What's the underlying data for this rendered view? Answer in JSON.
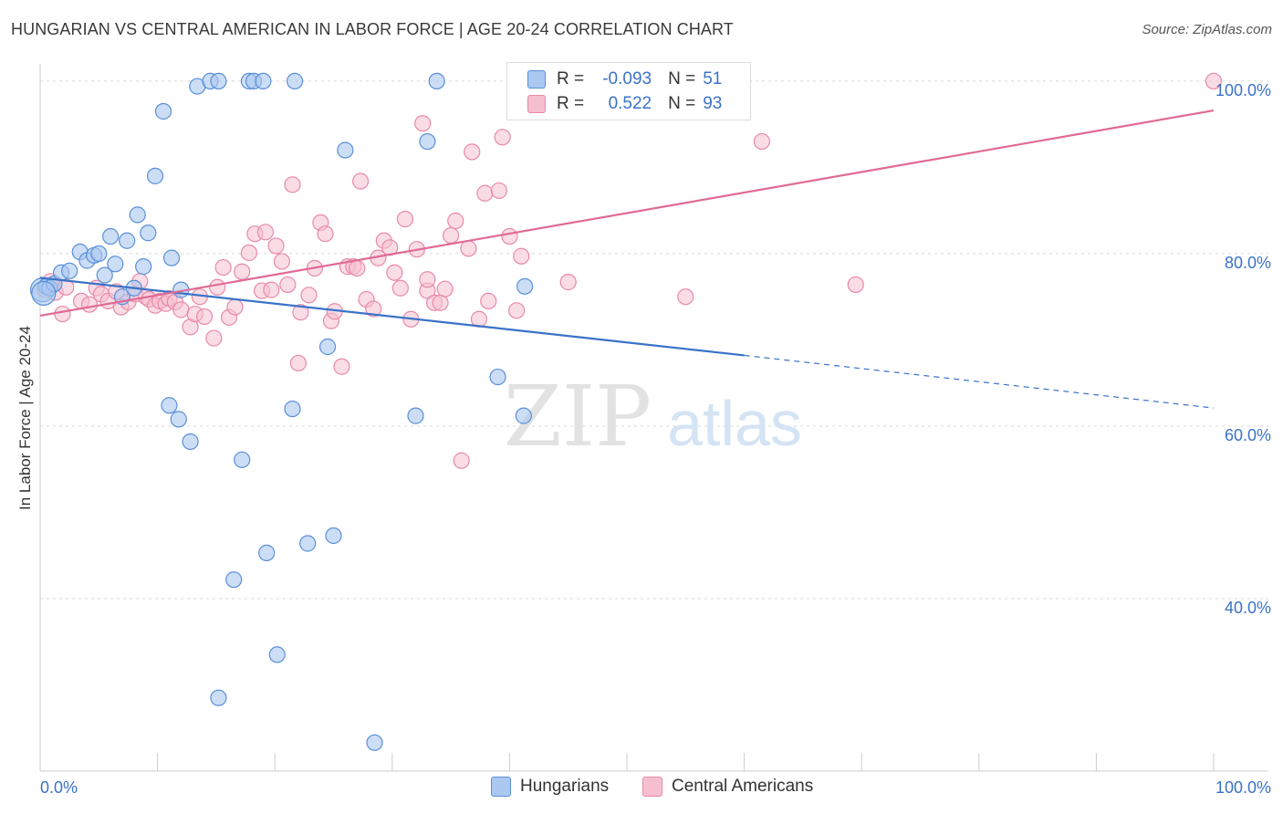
{
  "title": "HUNGARIAN VS CENTRAL AMERICAN IN LABOR FORCE | AGE 20-24 CORRELATION CHART",
  "source": "Source: ZipAtlas.com",
  "watermark": {
    "zip": "ZIP",
    "atlas": "atlas"
  },
  "legend": {
    "rows": [
      {
        "r_label": "R =",
        "r_value": "-0.093",
        "n_label": "N =",
        "n_value": "51"
      },
      {
        "r_label": "R =",
        "r_value": "0.522",
        "n_label": "N =",
        "n_value": "93"
      }
    ]
  },
  "colors": {
    "blue_fill": "#aac8f0",
    "blue_stroke": "#5a8fd8",
    "blue_line": "#3a72c8",
    "pink_fill": "#f6bfd0",
    "pink_stroke": "#e88aa8",
    "pink_line": "#e06a96",
    "tick_text": "#3a72c8",
    "grid": "#d8d8d8"
  },
  "chart_data": {
    "type": "scatter",
    "title": "HUNGARIAN VS CENTRAL AMERICAN IN LABOR FORCE | AGE 20-24 CORRELATION CHART",
    "xlabel": "",
    "ylabel": "In Labor Force | Age 20-24",
    "xlim": [
      0,
      100
    ],
    "ylim": [
      20,
      102
    ],
    "x_tick_labels": [
      "0.0%",
      "100.0%"
    ],
    "y_ticks": [
      40,
      60,
      80,
      100
    ],
    "y_tick_labels": [
      "40.0%",
      "60.0%",
      "80.0%",
      "100.0%"
    ],
    "grid": true,
    "legend_position": "bottom",
    "series": [
      {
        "name": "Hungarians",
        "r": -0.093,
        "n": 51,
        "trend": {
          "x0": 0,
          "y0": 77.2,
          "x1": 60,
          "y1": 68.2,
          "dashed_to_x": 100,
          "dashed_to_y": 62.1
        },
        "points": [
          [
            0.2,
            75.8
          ],
          [
            0.5,
            76.2
          ],
          [
            0.8,
            76.0
          ],
          [
            1.2,
            76.5
          ],
          [
            1.8,
            77.8
          ],
          [
            2.5,
            78.0
          ],
          [
            3.4,
            80.2
          ],
          [
            4.0,
            79.2
          ],
          [
            4.6,
            79.8
          ],
          [
            5.0,
            80.0
          ],
          [
            5.5,
            77.5
          ],
          [
            6.0,
            82.0
          ],
          [
            6.4,
            78.8
          ],
          [
            7.0,
            75.0
          ],
          [
            7.4,
            81.5
          ],
          [
            8.0,
            76.0
          ],
          [
            8.3,
            84.5
          ],
          [
            8.8,
            78.5
          ],
          [
            9.2,
            82.4
          ],
          [
            9.8,
            89.0
          ],
          [
            10.5,
            96.5
          ],
          [
            11.0,
            62.4
          ],
          [
            11.2,
            79.5
          ],
          [
            11.8,
            60.8
          ],
          [
            12.0,
            75.8
          ],
          [
            12.8,
            58.2
          ],
          [
            13.4,
            99.4
          ],
          [
            14.5,
            100.0
          ],
          [
            15.2,
            100.0
          ],
          [
            15.2,
            28.5
          ],
          [
            16.5,
            42.2
          ],
          [
            17.2,
            56.1
          ],
          [
            17.8,
            100.0
          ],
          [
            18.2,
            100.0
          ],
          [
            19.0,
            100.0
          ],
          [
            19.3,
            45.3
          ],
          [
            20.2,
            33.5
          ],
          [
            21.5,
            62.0
          ],
          [
            21.7,
            100.0
          ],
          [
            22.8,
            46.4
          ],
          [
            24.5,
            69.2
          ],
          [
            25.0,
            47.3
          ],
          [
            26.0,
            92.0
          ],
          [
            28.5,
            23.3
          ],
          [
            32.0,
            61.2
          ],
          [
            33.0,
            93.0
          ],
          [
            33.8,
            100.0
          ],
          [
            39.0,
            65.7
          ],
          [
            41.2,
            61.2
          ],
          [
            41.3,
            76.2
          ],
          [
            0.3,
            75.4
          ]
        ]
      },
      {
        "name": "Central Americans",
        "r": 0.522,
        "n": 93,
        "trend": {
          "x0": 0,
          "y0": 72.8,
          "x1": 100,
          "y1": 96.6
        },
        "points": [
          [
            0.4,
            75.8
          ],
          [
            0.9,
            76.8
          ],
          [
            1.3,
            75.5
          ],
          [
            1.9,
            73.0
          ],
          [
            2.2,
            76.1
          ],
          [
            3.5,
            74.5
          ],
          [
            4.2,
            74.1
          ],
          [
            4.8,
            76.0
          ],
          [
            5.2,
            75.3
          ],
          [
            5.8,
            74.5
          ],
          [
            6.5,
            75.6
          ],
          [
            6.9,
            73.8
          ],
          [
            7.5,
            74.4
          ],
          [
            8.1,
            75.3
          ],
          [
            8.5,
            76.8
          ],
          [
            9.0,
            75.0
          ],
          [
            9.3,
            74.7
          ],
          [
            9.8,
            74.0
          ],
          [
            10.2,
            74.5
          ],
          [
            10.7,
            74.2
          ],
          [
            11.0,
            74.8
          ],
          [
            11.5,
            74.4
          ],
          [
            12.0,
            73.5
          ],
          [
            12.8,
            71.5
          ],
          [
            13.2,
            73.0
          ],
          [
            13.6,
            75.0
          ],
          [
            14.0,
            72.7
          ],
          [
            14.8,
            70.2
          ],
          [
            15.1,
            76.1
          ],
          [
            15.6,
            78.4
          ],
          [
            16.1,
            72.6
          ],
          [
            16.6,
            73.8
          ],
          [
            17.2,
            77.9
          ],
          [
            17.8,
            80.1
          ],
          [
            18.3,
            82.3
          ],
          [
            18.9,
            75.7
          ],
          [
            19.2,
            82.5
          ],
          [
            19.7,
            75.8
          ],
          [
            20.1,
            80.9
          ],
          [
            20.6,
            79.1
          ],
          [
            21.1,
            76.4
          ],
          [
            21.5,
            88.0
          ],
          [
            22.2,
            73.2
          ],
          [
            22.9,
            75.2
          ],
          [
            23.4,
            78.3
          ],
          [
            23.9,
            83.6
          ],
          [
            24.3,
            82.3
          ],
          [
            24.8,
            72.2
          ],
          [
            25.1,
            73.3
          ],
          [
            25.7,
            66.9
          ],
          [
            26.2,
            78.5
          ],
          [
            26.7,
            78.5
          ],
          [
            27.3,
            88.4
          ],
          [
            27.8,
            74.7
          ],
          [
            28.4,
            73.6
          ],
          [
            28.8,
            79.5
          ],
          [
            29.3,
            81.5
          ],
          [
            29.8,
            80.7
          ],
          [
            30.2,
            77.8
          ],
          [
            30.7,
            76.0
          ],
          [
            31.1,
            84.0
          ],
          [
            31.6,
            72.4
          ],
          [
            32.1,
            80.5
          ],
          [
            32.6,
            95.1
          ],
          [
            33.0,
            75.7
          ],
          [
            33.6,
            74.3
          ],
          [
            34.1,
            74.3
          ],
          [
            34.5,
            75.9
          ],
          [
            35.0,
            82.1
          ],
          [
            35.4,
            83.8
          ],
          [
            35.9,
            56.0
          ],
          [
            36.5,
            80.6
          ],
          [
            36.8,
            91.8
          ],
          [
            37.4,
            72.4
          ],
          [
            37.9,
            87.0
          ],
          [
            38.2,
            74.5
          ],
          [
            39.1,
            87.3
          ],
          [
            39.4,
            93.5
          ],
          [
            40.0,
            82.0
          ],
          [
            40.6,
            73.4
          ],
          [
            41.0,
            79.7
          ],
          [
            42.0,
            97.8
          ],
          [
            43.0,
            99.7
          ],
          [
            45.0,
            76.7
          ],
          [
            46.5,
            97.2
          ],
          [
            55.0,
            75.0
          ],
          [
            59.5,
            99.5
          ],
          [
            61.5,
            93.0
          ],
          [
            69.5,
            76.4
          ],
          [
            100.0,
            100.0
          ],
          [
            22.0,
            67.3
          ],
          [
            27.0,
            78.3
          ],
          [
            33.0,
            77.0
          ]
        ]
      }
    ]
  }
}
